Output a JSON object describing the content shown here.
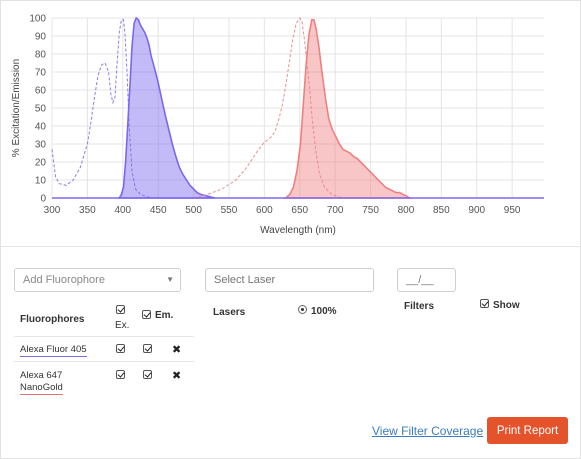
{
  "colors": {
    "excitation_405": "#8a7de8",
    "emission_405": "#7b68ee",
    "excitation_647": "#e89090",
    "emission_647": "#f08080",
    "button": "#e5532d",
    "link": "#3a7cc0"
  },
  "chart_data": {
    "type": "area",
    "xlabel": "Wavelength (nm)",
    "ylabel": "% Excitation/Emission",
    "xlim": [
      300,
      995
    ],
    "ylim": [
      0,
      100
    ],
    "x_ticks": [
      "300",
      "350",
      "400",
      "450",
      "500",
      "550",
      "600",
      "650",
      "700",
      "750",
      "800",
      "850",
      "900",
      "950"
    ],
    "y_ticks": [
      "0",
      "10",
      "20",
      "30",
      "40",
      "50",
      "60",
      "70",
      "80",
      "90",
      "100"
    ],
    "grid": true,
    "series": [
      {
        "name": "Alexa Fluor 405",
        "kind": "excitation",
        "style": "dashed",
        "points": [
          [
            300,
            27
          ],
          [
            305,
            12
          ],
          [
            310,
            8
          ],
          [
            320,
            7
          ],
          [
            330,
            10
          ],
          [
            340,
            17
          ],
          [
            350,
            30
          ],
          [
            355,
            42
          ],
          [
            360,
            56
          ],
          [
            365,
            68
          ],
          [
            370,
            74
          ],
          [
            375,
            75
          ],
          [
            380,
            70
          ],
          [
            383,
            58
          ],
          [
            386,
            53
          ],
          [
            389,
            56
          ],
          [
            392,
            75
          ],
          [
            395,
            92
          ],
          [
            398,
            99
          ],
          [
            401,
            99
          ],
          [
            403,
            92
          ],
          [
            406,
            70
          ],
          [
            409,
            40
          ],
          [
            413,
            15
          ],
          [
            418,
            5
          ],
          [
            425,
            2
          ],
          [
            440,
            0
          ]
        ]
      },
      {
        "name": "Alexa Fluor 405",
        "kind": "emission",
        "style": "filled",
        "points": [
          [
            395,
            0
          ],
          [
            398,
            2
          ],
          [
            401,
            6
          ],
          [
            404,
            20
          ],
          [
            407,
            40
          ],
          [
            410,
            62
          ],
          [
            413,
            84
          ],
          [
            416,
            97
          ],
          [
            419,
            100
          ],
          [
            422,
            99
          ],
          [
            425,
            96
          ],
          [
            428,
            94
          ],
          [
            431,
            92
          ],
          [
            434,
            89
          ],
          [
            437,
            85
          ],
          [
            440,
            79
          ],
          [
            445,
            72
          ],
          [
            450,
            64
          ],
          [
            455,
            55
          ],
          [
            460,
            46
          ],
          [
            465,
            38
          ],
          [
            470,
            30
          ],
          [
            475,
            23
          ],
          [
            480,
            17
          ],
          [
            485,
            13
          ],
          [
            490,
            10
          ],
          [
            495,
            7
          ],
          [
            500,
            5
          ],
          [
            505,
            3
          ],
          [
            510,
            2
          ],
          [
            520,
            1
          ],
          [
            530,
            0
          ]
        ]
      },
      {
        "name": "Alexa 647 NanoGold",
        "kind": "excitation",
        "style": "dashed",
        "points": [
          [
            500,
            0
          ],
          [
            520,
            2
          ],
          [
            540,
            5
          ],
          [
            560,
            10
          ],
          [
            575,
            17
          ],
          [
            590,
            26
          ],
          [
            600,
            31
          ],
          [
            610,
            34
          ],
          [
            615,
            37
          ],
          [
            620,
            43
          ],
          [
            625,
            51
          ],
          [
            630,
            62
          ],
          [
            635,
            75
          ],
          [
            640,
            88
          ],
          [
            645,
            97
          ],
          [
            650,
            100
          ],
          [
            653,
            98
          ],
          [
            656,
            90
          ],
          [
            660,
            76
          ],
          [
            664,
            60
          ],
          [
            668,
            42
          ],
          [
            673,
            25
          ],
          [
            678,
            13
          ],
          [
            685,
            6
          ],
          [
            695,
            2
          ],
          [
            710,
            0
          ]
        ]
      },
      {
        "name": "Alexa 647 NanoGold",
        "kind": "emission",
        "style": "filled",
        "points": [
          [
            630,
            0
          ],
          [
            636,
            2
          ],
          [
            641,
            6
          ],
          [
            646,
            15
          ],
          [
            651,
            30
          ],
          [
            655,
            52
          ],
          [
            659,
            74
          ],
          [
            663,
            91
          ],
          [
            667,
            99
          ],
          [
            670,
            99
          ],
          [
            673,
            94
          ],
          [
            677,
            84
          ],
          [
            681,
            71
          ],
          [
            686,
            56
          ],
          [
            691,
            44
          ],
          [
            696,
            38
          ],
          [
            701,
            34
          ],
          [
            706,
            30
          ],
          [
            711,
            27
          ],
          [
            716,
            26
          ],
          [
            721,
            25
          ],
          [
            726,
            23
          ],
          [
            731,
            22
          ],
          [
            736,
            20
          ],
          [
            741,
            18
          ],
          [
            746,
            16
          ],
          [
            751,
            14
          ],
          [
            756,
            12
          ],
          [
            761,
            10
          ],
          [
            766,
            8
          ],
          [
            771,
            6
          ],
          [
            776,
            5
          ],
          [
            781,
            4
          ],
          [
            786,
            3
          ],
          [
            791,
            3
          ],
          [
            796,
            2
          ],
          [
            801,
            1
          ],
          [
            805,
            0
          ]
        ]
      }
    ]
  },
  "controls": {
    "fluorophore_placeholder": "Add Fluorophore",
    "laser_placeholder": "Select Laser",
    "filter_placeholder": "__/__",
    "fluorophores_header": "Fluorophores",
    "ex_label": "Ex.",
    "em_label": "Em.",
    "lasers_label": "Lasers",
    "laser_power": "100%",
    "filters_label": "Filters",
    "show_label": "Show",
    "remove_glyph": "✖",
    "fluorophores": [
      {
        "name": "Alexa Fluor 405"
      },
      {
        "name_line1": "Alexa 647",
        "name_line2": "NanoGold"
      }
    ],
    "view_filter_coverage": "View Filter Coverage",
    "print_report": "Print Report"
  }
}
